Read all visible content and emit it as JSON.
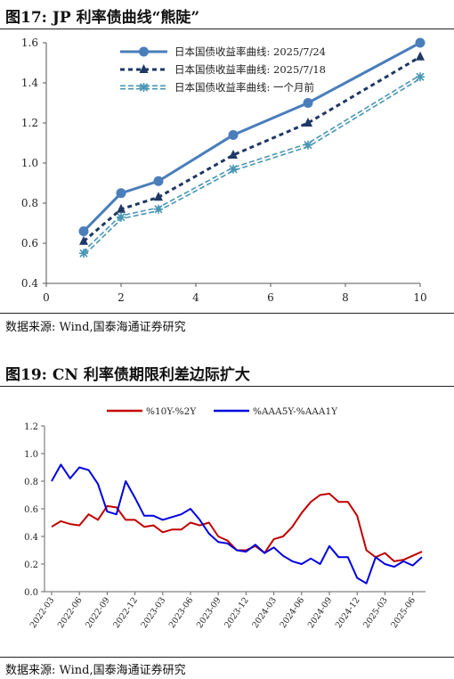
{
  "figure1": {
    "title": "图17:  JP 利率债曲线“熊陡”",
    "source": "数据来源:  Wind,国泰海通证券研究",
    "chart_data": {
      "type": "line",
      "title": "",
      "xlabel": "",
      "ylabel": "",
      "xlim": [
        0,
        10
      ],
      "ylim": [
        0.4,
        1.6
      ],
      "xticks": [
        "0",
        "2",
        "4",
        "6",
        "8",
        "10"
      ],
      "yticks": [
        "0.4",
        "0.6",
        "0.8",
        "1.0",
        "1.2",
        "1.4",
        "1.6"
      ],
      "grid": false,
      "legend_position": "top-left",
      "series": [
        {
          "name": "日本国债收益率曲线: 2025/7/24",
          "color": "#4a7ebb",
          "x": [
            1,
            2,
            3,
            5,
            7,
            10
          ],
          "y": [
            0.66,
            0.85,
            0.91,
            1.14,
            1.3,
            1.6
          ]
        },
        {
          "name": "日本国债收益率曲线: 2025/7/18",
          "color": "#1f3864",
          "x": [
            1,
            2,
            3,
            5,
            7,
            10
          ],
          "y": [
            0.61,
            0.77,
            0.83,
            1.04,
            1.2,
            1.53
          ]
        },
        {
          "name": "日本国债收益率曲线: 一个月前",
          "color": "#4a96b4",
          "x": [
            1,
            2,
            3,
            5,
            7,
            10
          ],
          "y": [
            0.55,
            0.73,
            0.77,
            0.97,
            1.09,
            1.43
          ]
        }
      ]
    }
  },
  "figure2": {
    "title": "图19:  CN 利率债期限利差边际扩大",
    "source": "数据来源:  Wind,国泰海通证券研究",
    "chart_data": {
      "type": "line",
      "title": "",
      "xlabel": "",
      "ylabel": "",
      "ylim": [
        0,
        1.2
      ],
      "yticks": [
        "0.0",
        "0.2",
        "0.4",
        "0.6",
        "0.8",
        "1.0",
        "1.2"
      ],
      "xticks": [
        "2022-03",
        "2022-06",
        "2022-09",
        "2022-12",
        "2023-03",
        "2023-06",
        "2023-09",
        "2023-12",
        "2024-03",
        "2024-06",
        "2024-09",
        "2024-12",
        "2025-03",
        "2025-06"
      ],
      "grid": false,
      "legend_position": "top-center",
      "series": [
        {
          "name": "%10Y-%2Y",
          "color": "#c00000",
          "x": [
            "2022-03",
            "2022-04",
            "2022-05",
            "2022-06",
            "2022-07",
            "2022-08",
            "2022-09",
            "2022-10",
            "2022-11",
            "2022-12",
            "2023-01",
            "2023-02",
            "2023-03",
            "2023-04",
            "2023-05",
            "2023-06",
            "2023-07",
            "2023-08",
            "2023-09",
            "2023-10",
            "2023-11",
            "2023-12",
            "2024-01",
            "2024-02",
            "2024-03",
            "2024-04",
            "2024-05",
            "2024-06",
            "2024-07",
            "2024-08",
            "2024-09",
            "2024-10",
            "2024-11",
            "2024-12",
            "2025-01",
            "2025-02",
            "2025-03",
            "2025-04",
            "2025-05",
            "2025-06",
            "2025-07"
          ],
          "y": [
            0.47,
            0.51,
            0.49,
            0.48,
            0.56,
            0.52,
            0.62,
            0.61,
            0.52,
            0.52,
            0.47,
            0.48,
            0.43,
            0.45,
            0.45,
            0.5,
            0.48,
            0.5,
            0.4,
            0.37,
            0.3,
            0.3,
            0.33,
            0.28,
            0.38,
            0.4,
            0.47,
            0.57,
            0.65,
            0.7,
            0.71,
            0.65,
            0.65,
            0.55,
            0.3,
            0.25,
            0.28,
            0.22,
            0.23,
            0.26,
            0.29
          ]
        },
        {
          "name": "%AAA5Y-%AAA1Y",
          "color": "#0000dd",
          "x": [
            "2022-03",
            "2022-04",
            "2022-05",
            "2022-06",
            "2022-07",
            "2022-08",
            "2022-09",
            "2022-10",
            "2022-11",
            "2022-12",
            "2023-01",
            "2023-02",
            "2023-03",
            "2023-04",
            "2023-05",
            "2023-06",
            "2023-07",
            "2023-08",
            "2023-09",
            "2023-10",
            "2023-11",
            "2023-12",
            "2024-01",
            "2024-02",
            "2024-03",
            "2024-04",
            "2024-05",
            "2024-06",
            "2024-07",
            "2024-08",
            "2024-09",
            "2024-10",
            "2024-11",
            "2024-12",
            "2025-01",
            "2025-02",
            "2025-03",
            "2025-04",
            "2025-05",
            "2025-06",
            "2025-07"
          ],
          "y": [
            0.8,
            0.92,
            0.82,
            0.9,
            0.88,
            0.78,
            0.58,
            0.56,
            0.8,
            0.68,
            0.55,
            0.55,
            0.52,
            0.54,
            0.56,
            0.6,
            0.52,
            0.42,
            0.36,
            0.35,
            0.3,
            0.29,
            0.34,
            0.28,
            0.32,
            0.26,
            0.22,
            0.2,
            0.24,
            0.2,
            0.33,
            0.25,
            0.25,
            0.1,
            0.06,
            0.25,
            0.2,
            0.18,
            0.22,
            0.19,
            0.25
          ]
        }
      ]
    }
  }
}
